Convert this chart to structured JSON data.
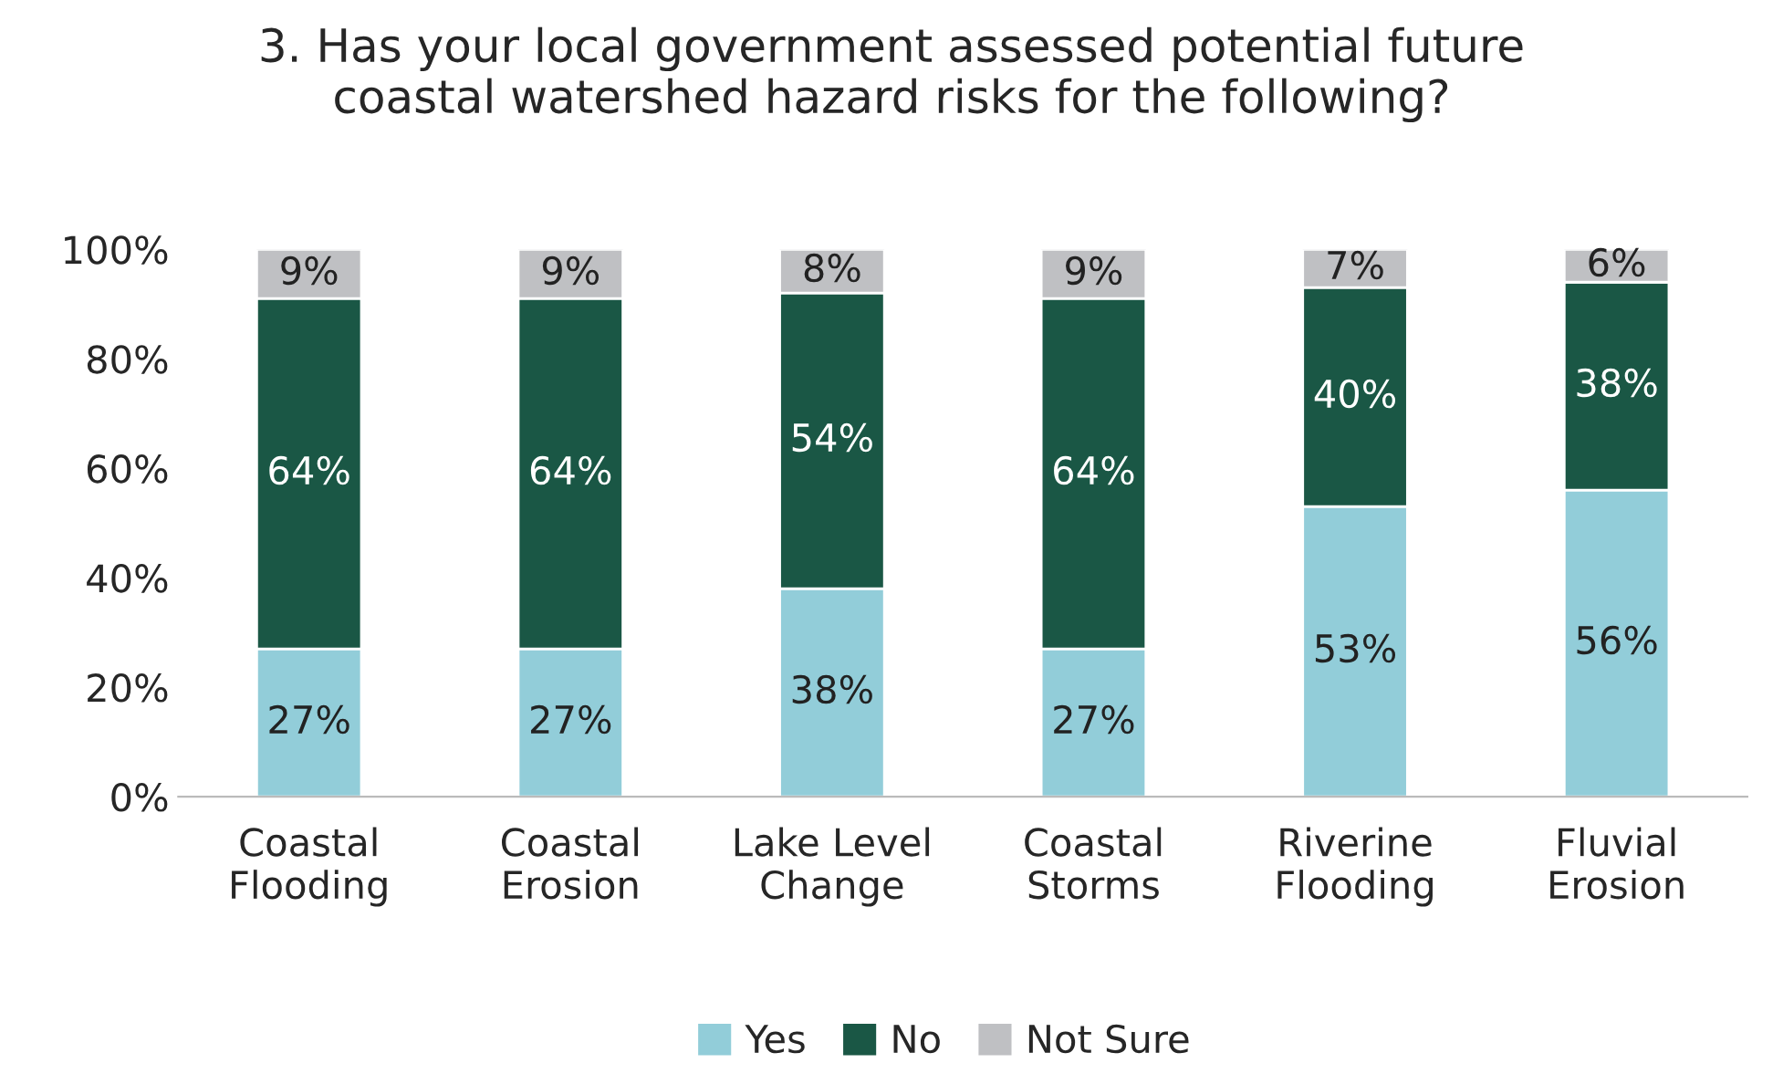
{
  "chart_data": {
    "type": "bar",
    "stacked": true,
    "title": "3. Has your local government assessed potential future\ncoastal watershed hazard risks for the following?",
    "categories": [
      "Coastal\nFlooding",
      "Coastal\nErosion",
      "Lake Level\nChange",
      "Coastal\nStorms",
      "Riverine\nFlooding",
      "Fluvial\nErosion"
    ],
    "series": [
      {
        "name": "Yes",
        "color": "#92cdd9",
        "values": [
          27,
          27,
          38,
          27,
          53,
          56
        ],
        "value_labels": [
          "27%",
          "27%",
          "38%",
          "27%",
          "53%",
          "56%"
        ]
      },
      {
        "name": "No",
        "color": "#1a5745",
        "values": [
          64,
          64,
          54,
          64,
          40,
          38
        ],
        "value_labels": [
          "64%",
          "64%",
          "54%",
          "64%",
          "40%",
          "38%"
        ]
      },
      {
        "name": "Not Sure",
        "color": "#bfc0c3",
        "values": [
          9,
          9,
          8,
          9,
          7,
          6
        ],
        "value_labels": [
          "9%",
          "9%",
          "8%",
          "9%",
          "7%",
          "6%"
        ]
      }
    ],
    "ylim": [
      0,
      100
    ],
    "yticks": [
      {
        "value": 0,
        "label": "0%"
      },
      {
        "value": 20,
        "label": "20%"
      },
      {
        "value": 40,
        "label": "40%"
      },
      {
        "value": 60,
        "label": "60%"
      },
      {
        "value": 80,
        "label": "80%"
      },
      {
        "value": 100,
        "label": "100%"
      }
    ],
    "grid": false,
    "legend": "bottom"
  }
}
